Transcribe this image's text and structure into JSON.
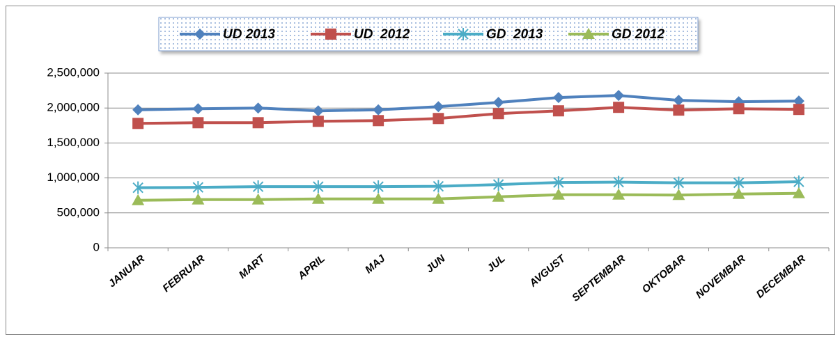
{
  "chart_data": {
    "type": "line",
    "categories": [
      "JANUAR",
      "FEBRUAR",
      "MART",
      "APRIL",
      "MAJ",
      "JUN",
      "JUL",
      "AVGUST",
      "SEPTEMBAR",
      "OKTOBAR",
      "NOVEMBAR",
      "DECEMBAR"
    ],
    "series": [
      {
        "name": "UD 2013",
        "color": "#4f81bd",
        "marker": "diamond",
        "values": [
          1975000,
          1990000,
          2000000,
          1960000,
          1975000,
          2020000,
          2080000,
          2150000,
          2180000,
          2110000,
          2090000,
          2100000
        ]
      },
      {
        "name": "UD  2012",
        "color": "#c0504d",
        "marker": "square",
        "values": [
          1780000,
          1790000,
          1790000,
          1810000,
          1820000,
          1850000,
          1920000,
          1960000,
          2010000,
          1970000,
          1990000,
          1980000
        ]
      },
      {
        "name": "GD  2013",
        "color": "#4bacc6",
        "marker": "star",
        "values": [
          860000,
          865000,
          875000,
          875000,
          875000,
          880000,
          905000,
          935000,
          940000,
          930000,
          930000,
          945000
        ]
      },
      {
        "name": "GD 2012",
        "color": "#9bbb59",
        "marker": "triangle",
        "values": [
          680000,
          690000,
          690000,
          700000,
          700000,
          700000,
          730000,
          760000,
          760000,
          755000,
          770000,
          780000
        ]
      }
    ],
    "ylim": [
      0,
      2500000
    ],
    "yticks": [
      0,
      {
        "value": 500000,
        "label": "500,000"
      },
      {
        "value": 1000000,
        "label": "1,000,000"
      },
      {
        "value": 1500000,
        "label": "1,500,000"
      },
      {
        "value": 2000000,
        "label": "2,000,000"
      },
      {
        "value": 2500000,
        "label": "2,500,000"
      }
    ],
    "grid": true,
    "legend": "top"
  }
}
